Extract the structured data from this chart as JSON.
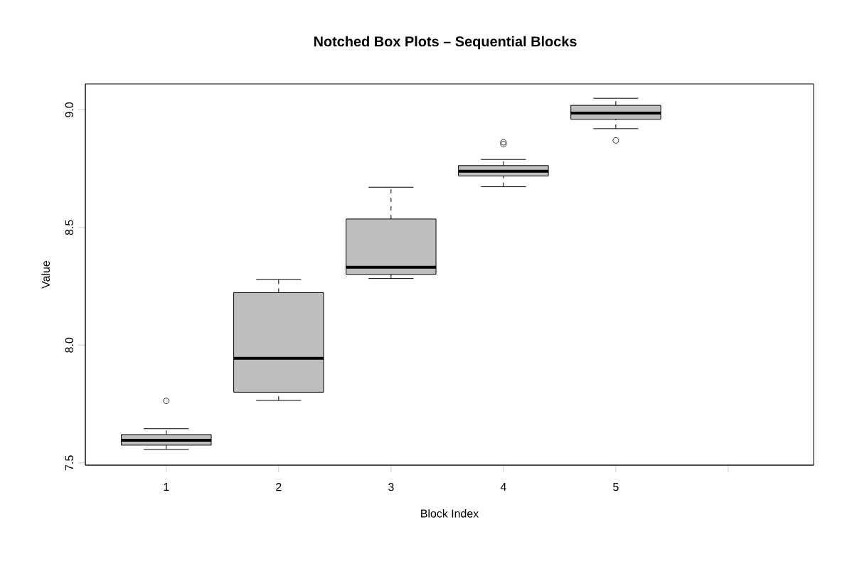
{
  "chart_data": {
    "type": "box",
    "title": "Notched Box Plots – Sequential Blocks",
    "xlabel": "Block Index",
    "ylabel": "Value",
    "categories": [
      "1",
      "2",
      "3",
      "4",
      "5",
      null
    ],
    "boxes": [
      {
        "low": 7.557,
        "q1": 7.575,
        "median": 7.596,
        "q3": 7.62,
        "high": 7.645,
        "outliers": [
          7.763
        ]
      },
      {
        "low": 7.765,
        "q1": 7.8,
        "median": 7.944,
        "q3": 8.223,
        "high": 8.28
      },
      {
        "low": 8.283,
        "q1": 8.301,
        "median": 8.331,
        "q3": 8.536,
        "high": 8.671
      },
      {
        "low": 8.673,
        "q1": 8.719,
        "median": 8.739,
        "q3": 8.763,
        "high": 8.789,
        "outliers": [
          8.854,
          8.862
        ]
      },
      {
        "low": 8.92,
        "q1": 8.96,
        "median": 8.986,
        "q3": 9.019,
        "high": 9.049,
        "outliers": [
          8.87
        ]
      },
      null
    ],
    "color": "#bebebe",
    "ylim": [
      7.49,
      9.11
    ],
    "yticks": [
      {
        "value": 7.5,
        "label": "7.5"
      },
      {
        "value": 8.0,
        "label": "8.0"
      },
      {
        "value": 8.5,
        "label": "8.5"
      },
      {
        "value": 9.0,
        "label": "9.0"
      }
    ],
    "grid": false
  }
}
